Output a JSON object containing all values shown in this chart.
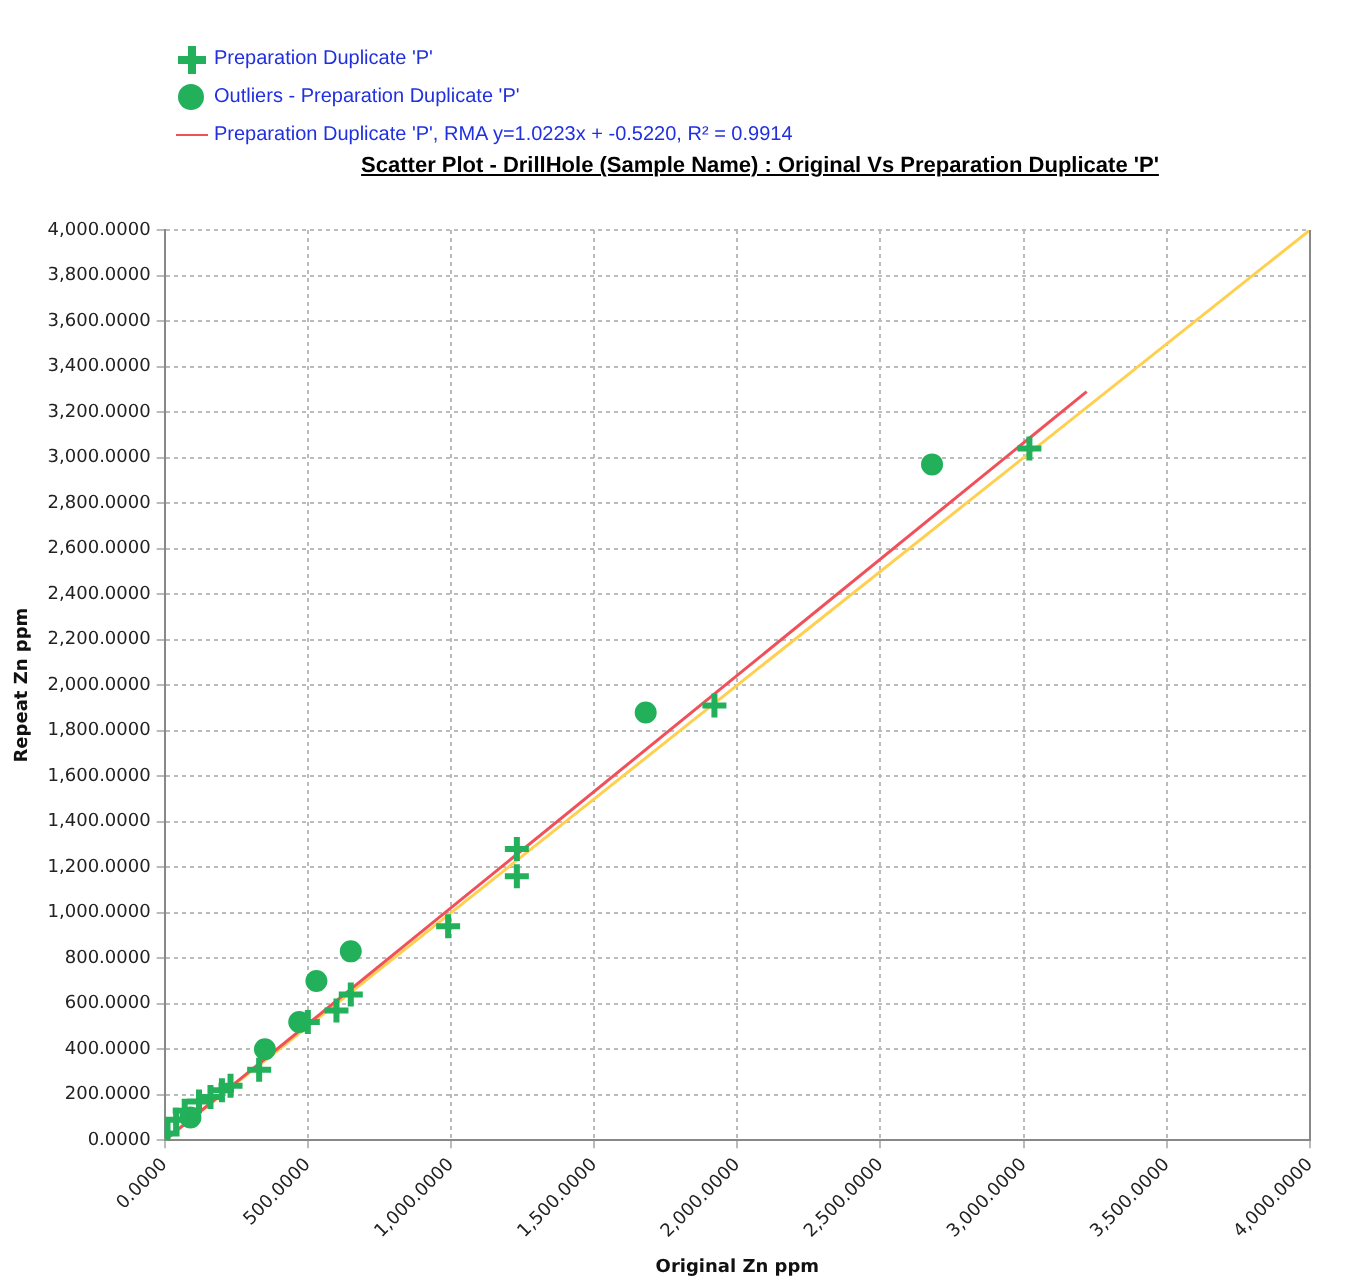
{
  "chart_data": {
    "type": "scatter",
    "title": "Scatter Plot - DrillHole (Sample Name) : Original Vs Preparation Duplicate 'P'",
    "xlabel": "Original Zn ppm",
    "ylabel": "Repeat Zn ppm",
    "xlim": [
      0,
      4000
    ],
    "ylim": [
      0,
      4000
    ],
    "xticks": [
      {
        "value": 0,
        "label": "0.0000"
      },
      {
        "value": 500,
        "label": "500.0000"
      },
      {
        "value": 1000,
        "label": "1,000.0000"
      },
      {
        "value": 1500,
        "label": "1,500.0000"
      },
      {
        "value": 2000,
        "label": "2,000.0000"
      },
      {
        "value": 2500,
        "label": "2,500.0000"
      },
      {
        "value": 3000,
        "label": "3,000.0000"
      },
      {
        "value": 3500,
        "label": "3,500.0000"
      },
      {
        "value": 4000,
        "label": "4,000.0000"
      }
    ],
    "yticks": [
      {
        "value": 0,
        "label": "0.0000"
      },
      {
        "value": 200,
        "label": "200.0000"
      },
      {
        "value": 400,
        "label": "400.0000"
      },
      {
        "value": 600,
        "label": "600.0000"
      },
      {
        "value": 800,
        "label": "800.0000"
      },
      {
        "value": 1000,
        "label": "1,000.0000"
      },
      {
        "value": 1200,
        "label": "1,200.0000"
      },
      {
        "value": 1400,
        "label": "1,400.0000"
      },
      {
        "value": 1600,
        "label": "1,600.0000"
      },
      {
        "value": 1800,
        "label": "1,800.0000"
      },
      {
        "value": 2000,
        "label": "2,000.0000"
      },
      {
        "value": 2200,
        "label": "2,200.0000"
      },
      {
        "value": 2400,
        "label": "2,400.0000"
      },
      {
        "value": 2600,
        "label": "2,600.0000"
      },
      {
        "value": 2800,
        "label": "2,800.0000"
      },
      {
        "value": 3000,
        "label": "3,000.0000"
      },
      {
        "value": 3200,
        "label": "3,200.0000"
      },
      {
        "value": 3400,
        "label": "3,400.0000"
      },
      {
        "value": 3600,
        "label": "3,600.0000"
      },
      {
        "value": 3800,
        "label": "3,800.0000"
      },
      {
        "value": 4000,
        "label": "4,000.0000"
      }
    ],
    "grid": true,
    "legend": "top left",
    "series": [
      {
        "name": "Preparation Duplicate 'P'",
        "marker": "cross",
        "color": "#22b05a",
        "x": [
          10,
          40,
          70,
          120,
          160,
          200,
          230,
          330,
          500,
          600,
          650,
          990,
          1230,
          1230,
          1920,
          3020
        ],
        "values": [
          30,
          90,
          130,
          170,
          190,
          220,
          240,
          310,
          520,
          570,
          640,
          940,
          1280,
          1160,
          1910,
          3040
        ]
      },
      {
        "name": "Outliers - Preparation Duplicate 'P'",
        "marker": "circle",
        "color": "#22b05a",
        "x": [
          90,
          350,
          470,
          530,
          650,
          1680,
          2680
        ],
        "values": [
          100,
          400,
          520,
          700,
          830,
          1880,
          2970
        ]
      },
      {
        "name": "Preparation Duplicate 'P', RMA y=1.0223x + -0.5220, R² = 0.9914",
        "type": "line",
        "marker": "none",
        "color": "#f0505a",
        "x": [
          10,
          3220
        ],
        "values": [
          10,
          3290
        ]
      },
      {
        "type": "line",
        "marker": "none",
        "color": "#ffd050",
        "x": [
          0,
          4000
        ],
        "values": [
          0,
          4000
        ]
      }
    ]
  }
}
